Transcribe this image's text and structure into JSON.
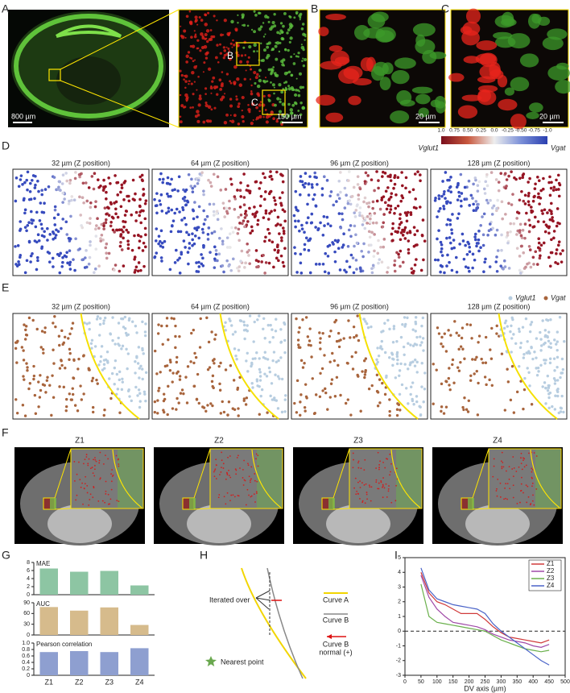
{
  "panel_labels": [
    "A",
    "B",
    "C",
    "D",
    "E",
    "F",
    "G",
    "H",
    "I"
  ],
  "panel_a": {
    "scale_bars": [
      "800 µm",
      "150 µm"
    ],
    "box_labels": [
      "B",
      "C"
    ]
  },
  "panel_b": {
    "scale_bar": "20 µm"
  },
  "panel_c": {
    "scale_bar": "20 µm"
  },
  "panel_d": {
    "titles": [
      "32 µm (Z position)",
      "64 µm (Z position)",
      "96 µm (Z position)",
      "128 µm (Z position)"
    ],
    "colorbar": {
      "ticks": [
        "1.0",
        "0.75",
        "0.50",
        "0.25",
        "0.0",
        "-0.25",
        "-0.50",
        "-0.75",
        "-1.0"
      ],
      "left_label": "Vglut1",
      "right_label": "Vgat"
    }
  },
  "panel_e": {
    "titles": [
      "32 µm (Z position)",
      "64 µm (Z position)",
      "96 µm (Z position)",
      "128 µm (Z position)"
    ],
    "legend": [
      "Vglut1",
      "Vgat"
    ]
  },
  "panel_f": {
    "titles": [
      "Z1",
      "Z2",
      "Z3",
      "Z4"
    ]
  },
  "panel_h": {
    "iterated": "Iterated over",
    "curve_a": "Curve A",
    "curve_b": "Curve B",
    "normal": [
      "Curve B",
      "normal (+)"
    ],
    "nearest": "Nearest point"
  },
  "chart_data": [
    {
      "type": "bar",
      "title": "MAE",
      "values": [
        6.5,
        5.7,
        5.9,
        2.3
      ],
      "color": "#8dc5a3",
      "ylim": [
        0,
        8
      ],
      "yticks": [
        0,
        2,
        4,
        6,
        8
      ]
    },
    {
      "type": "bar",
      "title": "AUC",
      "values": [
        78,
        68,
        77,
        28
      ],
      "color": "#d6bb8c",
      "ylim": [
        0,
        90
      ],
      "yticks": [
        0,
        30,
        60,
        90
      ]
    },
    {
      "type": "bar",
      "title": "Pearson correlation",
      "categories": [
        "Z1",
        "Z2",
        "Z3",
        "Z4"
      ],
      "values": [
        0.72,
        0.75,
        0.72,
        0.84
      ],
      "color": "#8e9fd0",
      "ylim": [
        0,
        1
      ],
      "yticks": [
        0,
        0.2,
        0.4,
        0.6,
        0.8,
        {
          "value": 1,
          "label": "1.0"
        }
      ]
    },
    {
      "type": "line",
      "x_label": "DV axis (µm)",
      "x": [
        50,
        75,
        100,
        125,
        150,
        175,
        200,
        225,
        250,
        275,
        300,
        325,
        350,
        375,
        400,
        425,
        450
      ],
      "xlim": [
        0,
        500
      ],
      "xticks": [
        0,
        50,
        100,
        150,
        200,
        250,
        300,
        350,
        400,
        450,
        500
      ],
      "ylim": [
        -3,
        5
      ],
      "yticks": [
        -3,
        -2,
        -1,
        0,
        1,
        2,
        3,
        4,
        5
      ],
      "series": [
        {
          "name": "Z1",
          "color": "#d03a3a",
          "values": [
            4.0,
            2.6,
            2.0,
            1.8,
            1.5,
            1.2,
            1.2,
            1.2,
            0.8,
            0.3,
            -0.1,
            -0.4,
            -0.5,
            -0.6,
            -0.7,
            -0.8,
            -0.6
          ]
        },
        {
          "name": "Z2",
          "color": "#a04aa8",
          "values": [
            3.8,
            2.3,
            1.5,
            1.0,
            0.6,
            0.5,
            0.4,
            0.3,
            0.1,
            -0.2,
            -0.4,
            -0.6,
            -0.7,
            -0.8,
            -1.0,
            -1.1,
            -0.9
          ]
        },
        {
          "name": "Z3",
          "color": "#6ab04c",
          "values": [
            3.2,
            1.0,
            0.6,
            0.5,
            0.4,
            0.3,
            0.2,
            0.1,
            0,
            -0.3,
            -0.6,
            -0.8,
            -1.0,
            -1.2,
            -1.3,
            -1.4,
            -1.3
          ]
        },
        {
          "name": "Z4",
          "color": "#4a63c8",
          "values": [
            4.3,
            2.8,
            2.2,
            2.0,
            1.8,
            1.7,
            1.6,
            1.5,
            1.2,
            0.5,
            0,
            -0.4,
            -0.8,
            -1.2,
            -1.6,
            -2.0,
            -2.3
          ]
        }
      ]
    }
  ]
}
